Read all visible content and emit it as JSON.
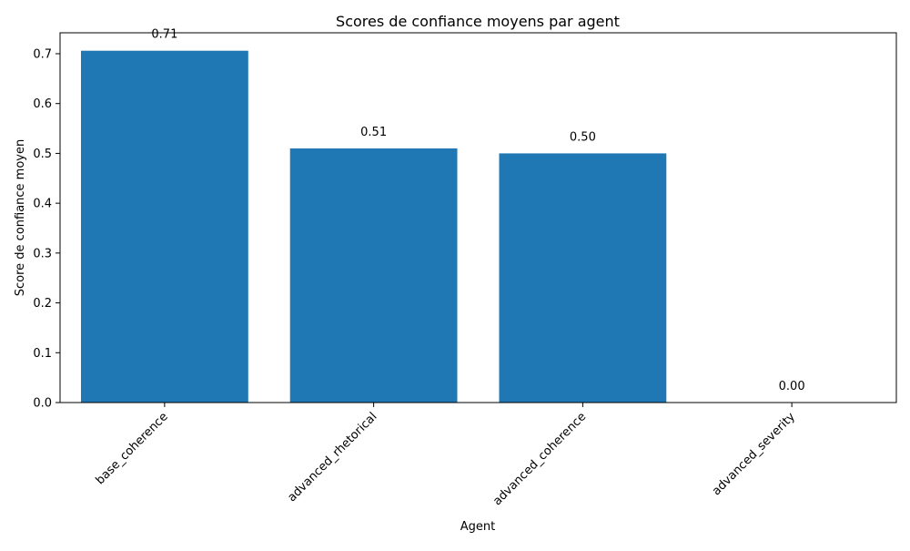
{
  "chart_data": {
    "type": "bar",
    "title": "Scores de confiance moyens par agent",
    "xlabel": "Agent",
    "ylabel": "Score de confiance moyen",
    "categories": [
      "base_coherence",
      "advanced_rhetorical",
      "advanced_coherence",
      "advanced_severity"
    ],
    "values": [
      0.706,
      0.51,
      0.5,
      0.0
    ],
    "data_labels": [
      "0.71",
      "0.51",
      "0.50",
      "0.00"
    ],
    "ylim": [
      0,
      0.742
    ],
    "yticks": [
      0.0,
      0.1,
      0.2,
      0.3,
      0.4,
      0.5,
      0.6,
      0.7
    ],
    "ytick_labels": [
      "0.0",
      "0.1",
      "0.2",
      "0.3",
      "0.4",
      "0.5",
      "0.6",
      "0.7"
    ],
    "bar_color": "#1f77b4",
    "grid": false,
    "legend": "none"
  }
}
